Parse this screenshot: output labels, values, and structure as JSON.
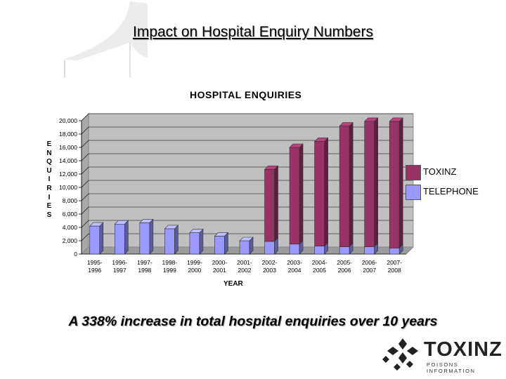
{
  "slide": {
    "title": "Impact on Hospital Enquiry Numbers",
    "caption": "A 338% increase in total hospital enquiries over 10 years"
  },
  "logo": {
    "name": "TOXINZ",
    "tagline": "POISONS INFORMATION",
    "icon": "diamond-cluster-icon"
  },
  "chart_data": {
    "type": "bar",
    "stacked": true,
    "title": "HOSPITAL ENQUIRIES",
    "xlabel": "YEAR",
    "ylabel": "ENQUIRIES",
    "ylim": [
      0,
      20000
    ],
    "yticks": [
      "0",
      "2,000",
      "4,000",
      "6,000",
      "8,000",
      "10,000",
      "12,000",
      "14,000",
      "16,000",
      "18,000",
      "20,000"
    ],
    "grid": true,
    "legend_position": "right",
    "categories": [
      [
        "1995-",
        "1996"
      ],
      [
        "1996-",
        "1997"
      ],
      [
        "1997-",
        "1998"
      ],
      [
        "1998-",
        "1999"
      ],
      [
        "1999-",
        "2000"
      ],
      [
        "2000-",
        "2001"
      ],
      [
        "2001-",
        "2002"
      ],
      [
        "2002-",
        "2003"
      ],
      [
        "2003-",
        "2004"
      ],
      [
        "2004-",
        "2005"
      ],
      [
        "2005-",
        "2006"
      ],
      [
        "2006-",
        "2007"
      ],
      [
        "2007-",
        "2008"
      ]
    ],
    "series": [
      {
        "name": "TELEPHONE",
        "color": "#9999ff",
        "values": [
          4200,
          4500,
          4700,
          3800,
          3200,
          2700,
          2000,
          1900,
          1500,
          1200,
          1100,
          1100,
          900
        ]
      },
      {
        "name": "TOXINZ",
        "color": "#993366",
        "values": [
          0,
          0,
          0,
          0,
          0,
          0,
          0,
          10800,
          14500,
          15700,
          18100,
          18800,
          19000
        ]
      }
    ],
    "legend_order": [
      "TOXINZ",
      "TELEPHONE"
    ]
  }
}
